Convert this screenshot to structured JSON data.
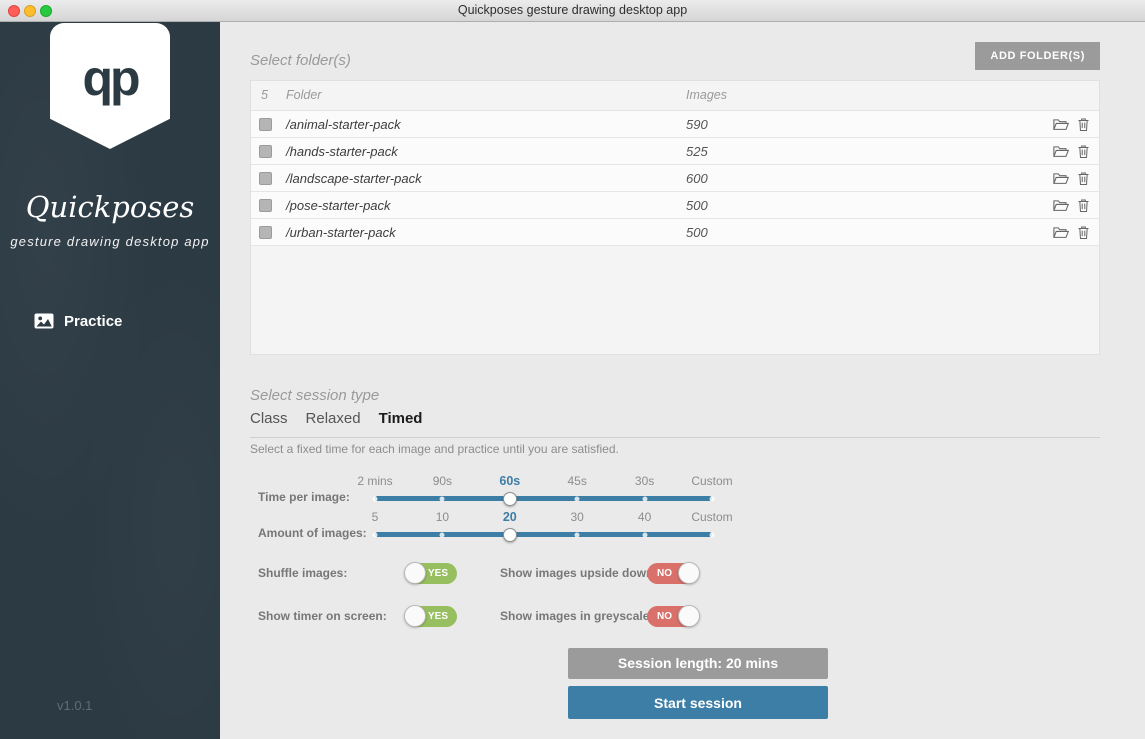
{
  "window": {
    "title": "Quickposes gesture drawing desktop app"
  },
  "sidebar": {
    "logo_text": "qp",
    "brand": "Quickposes",
    "tagline": "gesture drawing desktop app",
    "nav": [
      {
        "label": "Practice",
        "icon": "image-icon"
      }
    ],
    "version": "v1.0.1"
  },
  "folders": {
    "heading": "Select folder(s)",
    "add_button": "ADD FOLDER(S)",
    "selected_count": "5",
    "columns": {
      "folder": "Folder",
      "images": "Images"
    },
    "rows": [
      {
        "name": "/animal-starter-pack",
        "images": "590"
      },
      {
        "name": "/hands-starter-pack",
        "images": "525"
      },
      {
        "name": "/landscape-starter-pack",
        "images": "600"
      },
      {
        "name": "/pose-starter-pack",
        "images": "500"
      },
      {
        "name": "/urban-starter-pack",
        "images": "500"
      }
    ]
  },
  "session": {
    "heading": "Select session type",
    "tabs": [
      {
        "label": "Class",
        "active": false
      },
      {
        "label": "Relaxed",
        "active": false
      },
      {
        "label": "Timed",
        "active": true
      }
    ],
    "description": "Select a fixed time for each image and practice until you are satisfied.",
    "time_slider": {
      "label": "Time per image:",
      "options": [
        "2 mins",
        "90s",
        "60s",
        "45s",
        "30s",
        "Custom"
      ],
      "selected": "60s",
      "selected_index": 2
    },
    "amount_slider": {
      "label": "Amount of images:",
      "options": [
        "5",
        "10",
        "20",
        "30",
        "40",
        "Custom"
      ],
      "selected": "20",
      "selected_index": 2
    },
    "toggles": [
      {
        "label": "Shuffle images:",
        "value": "YES",
        "state": "yes"
      },
      {
        "label": "Show images upside down:",
        "value": "NO",
        "state": "no"
      },
      {
        "label": "Show timer on screen:",
        "value": "YES",
        "state": "yes"
      },
      {
        "label": "Show images in greyscale:",
        "value": "NO",
        "state": "no"
      }
    ],
    "session_length": "Session length: 20 mins",
    "start_button": "Start session"
  },
  "colors": {
    "accent_blue": "#3d7ea6",
    "selected_label_blue": "#2f7db3",
    "toggle_yes_green": "#97bf60",
    "toggle_no_red": "#d9706a",
    "sidebar_bg": "#2c3a44",
    "button_gray": "#9b9b9b"
  }
}
